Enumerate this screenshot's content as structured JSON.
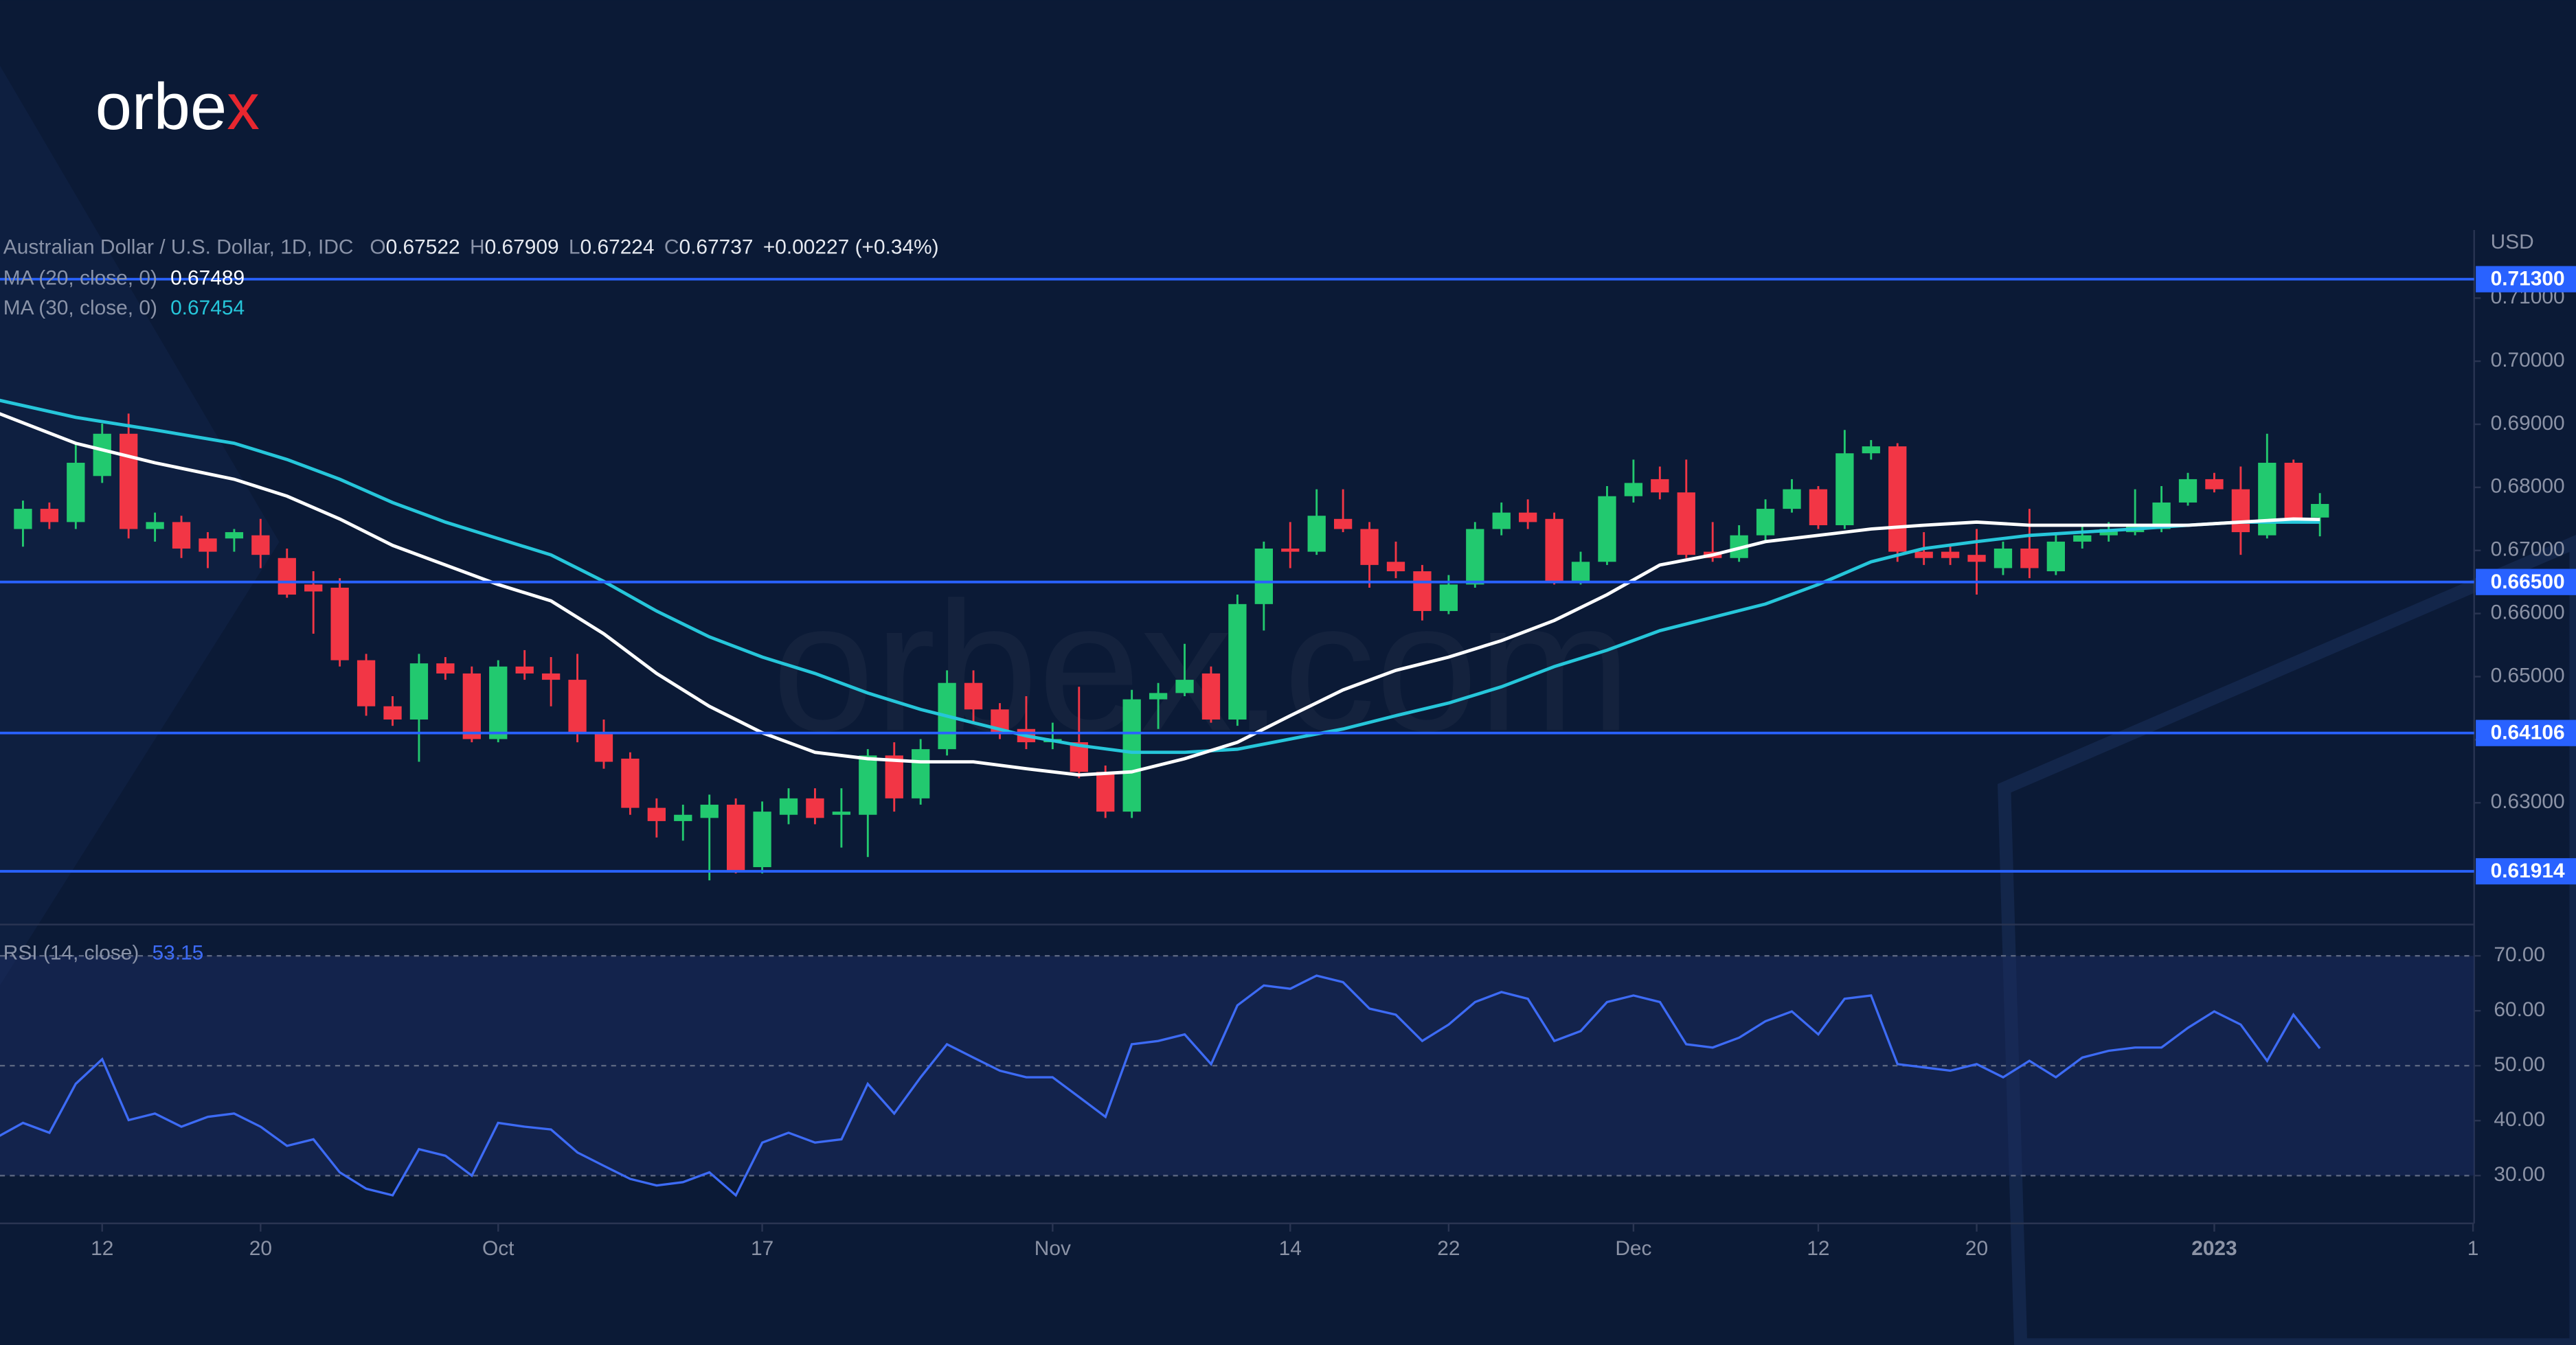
{
  "logo": [
    "orbe",
    "x"
  ],
  "watermark": "orbex.com",
  "chart_data": [
    {
      "type": "candlestick",
      "title": "Australian Dollar / U.S. Dollar, 1D, IDC",
      "ohlc_legend": [
        {
          "label": "O",
          "value": 0.67522
        },
        {
          "label": "H",
          "value": 0.67909
        },
        {
          "label": "L",
          "value": 0.67224
        },
        {
          "label": "C",
          "value": 0.67737
        }
      ],
      "change": "+0.00227 (+0.34%)",
      "y_unit": "USD",
      "up_color": "#22c96f",
      "down_color": "#f23645",
      "ylim": [
        0.6107,
        0.7208
      ],
      "yticks": [
        {
          "value": 0.63,
          "label": "0.63000"
        },
        {
          "value": 0.64,
          "label": "0.64000"
        },
        {
          "value": 0.65,
          "label": "0.65000"
        },
        {
          "value": 0.66,
          "label": "0.66000"
        },
        {
          "value": 0.67,
          "label": "0.67000"
        },
        {
          "value": 0.68,
          "label": "0.68000"
        },
        {
          "value": 0.69,
          "label": "0.69000"
        },
        {
          "value": 0.7,
          "label": "0.70000"
        },
        {
          "value": 0.71,
          "label": "0.71000"
        }
      ],
      "xlim": [
        -0.87,
        92.78
      ],
      "xticks": [
        {
          "value": 3,
          "label": "12"
        },
        {
          "value": 9,
          "label": "20"
        },
        {
          "value": 18,
          "label": "Oct"
        },
        {
          "value": 28,
          "label": "17"
        },
        {
          "value": 39,
          "label": "Nov"
        },
        {
          "value": 48,
          "label": "14"
        },
        {
          "value": 54,
          "label": "22"
        },
        {
          "value": 61,
          "label": "Dec"
        },
        {
          "value": 68,
          "label": "12"
        },
        {
          "value": 74,
          "label": "20"
        },
        {
          "value": 83,
          "label": "2023"
        },
        {
          "value": 92.8,
          "label": "1"
        }
      ],
      "levels": [
        {
          "value": 0.713,
          "label": "0.71300"
        },
        {
          "value": 0.665,
          "label": "0.66500"
        },
        {
          "value": 0.64106,
          "label": "0.64106"
        },
        {
          "value": 0.61914,
          "label": "0.61914"
        }
      ],
      "level_color": "#2962ff",
      "ohlc": [
        [
          0.6734,
          0.6779,
          0.6706,
          0.6766
        ],
        [
          0.6766,
          0.6776,
          0.6734,
          0.6745
        ],
        [
          0.6745,
          0.687,
          0.6734,
          0.6839
        ],
        [
          0.6818,
          0.6901,
          0.6807,
          0.6885
        ],
        [
          0.6885,
          0.6917,
          0.6719,
          0.6734
        ],
        [
          0.6734,
          0.676,
          0.6714,
          0.6745
        ],
        [
          0.6745,
          0.6755,
          0.6688,
          0.6703
        ],
        [
          0.6719,
          0.6729,
          0.6672,
          0.6698
        ],
        [
          0.6719,
          0.6734,
          0.6698,
          0.6729
        ],
        [
          0.6724,
          0.675,
          0.6672,
          0.6693
        ],
        [
          0.6688,
          0.6703,
          0.6625,
          0.663
        ],
        [
          0.6646,
          0.6667,
          0.6568,
          0.6635
        ],
        [
          0.6641,
          0.6656,
          0.6516,
          0.6526
        ],
        [
          0.6526,
          0.6536,
          0.6438,
          0.6453
        ],
        [
          0.6453,
          0.6469,
          0.6422,
          0.6432
        ],
        [
          0.6432,
          0.6536,
          0.6365,
          0.6521
        ],
        [
          0.6521,
          0.6531,
          0.6495,
          0.6505
        ],
        [
          0.6505,
          0.6516,
          0.6396,
          0.6401
        ],
        [
          0.6401,
          0.6526,
          0.6396,
          0.6516
        ],
        [
          0.6516,
          0.6542,
          0.6495,
          0.6505
        ],
        [
          0.6505,
          0.6531,
          0.6453,
          0.6495
        ],
        [
          0.6495,
          0.6536,
          0.6396,
          0.6411
        ],
        [
          0.6411,
          0.6432,
          0.6354,
          0.6365
        ],
        [
          0.637,
          0.638,
          0.6281,
          0.6292
        ],
        [
          0.6292,
          0.6307,
          0.6245,
          0.6271
        ],
        [
          0.6271,
          0.6297,
          0.624,
          0.6281
        ],
        [
          0.6276,
          0.6313,
          0.6177,
          0.6297
        ],
        [
          0.6297,
          0.6307,
          0.6188,
          0.6193
        ],
        [
          0.6198,
          0.6302,
          0.6188,
          0.6286
        ],
        [
          0.6281,
          0.6323,
          0.6266,
          0.6307
        ],
        [
          0.6307,
          0.6323,
          0.6266,
          0.6276
        ],
        [
          0.6281,
          0.6323,
          0.6229,
          0.6286
        ],
        [
          0.6281,
          0.6385,
          0.6214,
          0.6375
        ],
        [
          0.6375,
          0.6396,
          0.6286,
          0.6307
        ],
        [
          0.6307,
          0.6401,
          0.6297,
          0.6385
        ],
        [
          0.6385,
          0.651,
          0.6375,
          0.649
        ],
        [
          0.649,
          0.651,
          0.6427,
          0.6448
        ],
        [
          0.6448,
          0.6458,
          0.6401,
          0.6411
        ],
        [
          0.6417,
          0.6469,
          0.6385,
          0.6396
        ],
        [
          0.6396,
          0.6427,
          0.6385,
          0.6401
        ],
        [
          0.6396,
          0.6484,
          0.6339,
          0.6349
        ],
        [
          0.6349,
          0.6359,
          0.6276,
          0.6286
        ],
        [
          0.6286,
          0.6479,
          0.6276,
          0.6464
        ],
        [
          0.6464,
          0.649,
          0.6417,
          0.6474
        ],
        [
          0.6474,
          0.6552,
          0.6469,
          0.6495
        ],
        [
          0.6505,
          0.6516,
          0.6427,
          0.6432
        ],
        [
          0.6432,
          0.663,
          0.6422,
          0.6615
        ],
        [
          0.6615,
          0.6714,
          0.6573,
          0.6703
        ],
        [
          0.6703,
          0.6745,
          0.6672,
          0.6698
        ],
        [
          0.6698,
          0.6797,
          0.6693,
          0.6755
        ],
        [
          0.675,
          0.6797,
          0.6729,
          0.6734
        ],
        [
          0.6734,
          0.6745,
          0.6641,
          0.6677
        ],
        [
          0.6682,
          0.6714,
          0.6656,
          0.6667
        ],
        [
          0.6667,
          0.6677,
          0.6589,
          0.6604
        ],
        [
          0.6604,
          0.6661,
          0.6599,
          0.6646
        ],
        [
          0.6646,
          0.6745,
          0.6641,
          0.6734
        ],
        [
          0.6734,
          0.6776,
          0.6724,
          0.676
        ],
        [
          0.676,
          0.6781,
          0.6734,
          0.6745
        ],
        [
          0.675,
          0.676,
          0.6646,
          0.6651
        ],
        [
          0.6651,
          0.6698,
          0.6646,
          0.6682
        ],
        [
          0.6682,
          0.6802,
          0.6677,
          0.6786
        ],
        [
          0.6786,
          0.6844,
          0.6776,
          0.6807
        ],
        [
          0.6813,
          0.6833,
          0.6781,
          0.6792
        ],
        [
          0.6792,
          0.6844,
          0.6688,
          0.6693
        ],
        [
          0.6698,
          0.6745,
          0.6682,
          0.6688
        ],
        [
          0.6688,
          0.674,
          0.6682,
          0.6724
        ],
        [
          0.6724,
          0.6781,
          0.6714,
          0.6766
        ],
        [
          0.6766,
          0.6813,
          0.676,
          0.6797
        ],
        [
          0.6797,
          0.6802,
          0.6734,
          0.674
        ],
        [
          0.674,
          0.6891,
          0.6734,
          0.6854
        ],
        [
          0.6854,
          0.6875,
          0.6844,
          0.6865
        ],
        [
          0.6865,
          0.687,
          0.6682,
          0.6698
        ],
        [
          0.6698,
          0.6729,
          0.6677,
          0.6688
        ],
        [
          0.6698,
          0.6708,
          0.6677,
          0.6688
        ],
        [
          0.6693,
          0.6734,
          0.663,
          0.6682
        ],
        [
          0.6672,
          0.6714,
          0.6661,
          0.6703
        ],
        [
          0.6703,
          0.6766,
          0.6656,
          0.6672
        ],
        [
          0.6667,
          0.6729,
          0.6661,
          0.6714
        ],
        [
          0.6714,
          0.674,
          0.6703,
          0.6724
        ],
        [
          0.6724,
          0.6745,
          0.6714,
          0.6734
        ],
        [
          0.6729,
          0.6797,
          0.6724,
          0.674
        ],
        [
          0.6734,
          0.6802,
          0.6729,
          0.6776
        ],
        [
          0.6776,
          0.6823,
          0.6771,
          0.6813
        ],
        [
          0.6813,
          0.6823,
          0.6792,
          0.6797
        ],
        [
          0.6797,
          0.6833,
          0.6693,
          0.6729
        ],
        [
          0.6724,
          0.6885,
          0.6719,
          0.6839
        ],
        [
          0.6839,
          0.6844,
          0.6745,
          0.675
        ],
        [
          0.67522,
          0.67909,
          0.67224,
          0.67737
        ]
      ],
      "series": [
        {
          "name": "MA (20, close, 0)",
          "last": 0.67489,
          "color": "#ffffff",
          "x": [
            -0.9,
            2,
            5,
            8,
            10,
            12,
            14,
            16,
            18,
            20,
            22,
            24,
            26,
            28,
            30,
            32,
            34,
            36,
            38,
            40,
            42,
            44,
            46,
            48,
            50,
            52,
            54,
            56,
            58,
            60,
            62,
            64,
            66,
            68,
            70,
            72,
            74,
            76,
            78,
            80,
            82,
            84,
            86,
            87
          ],
          "values": [
            0.6917,
            0.687,
            0.6839,
            0.6813,
            0.6786,
            0.675,
            0.6708,
            0.6677,
            0.6646,
            0.662,
            0.6568,
            0.6505,
            0.6453,
            0.6411,
            0.638,
            0.637,
            0.6365,
            0.6365,
            0.6354,
            0.6344,
            0.6349,
            0.637,
            0.6396,
            0.6438,
            0.6479,
            0.651,
            0.6531,
            0.6557,
            0.6589,
            0.663,
            0.6677,
            0.6693,
            0.6714,
            0.6724,
            0.6734,
            0.674,
            0.6745,
            0.674,
            0.674,
            0.674,
            0.674,
            0.6745,
            0.675,
            0.6749
          ]
        },
        {
          "name": "MA (30, close, 0)",
          "last": 0.67454,
          "color": "#26c6da",
          "x": [
            -0.9,
            2,
            5,
            8,
            10,
            12,
            14,
            16,
            18,
            20,
            22,
            24,
            26,
            28,
            30,
            32,
            34,
            36,
            38,
            40,
            42,
            44,
            46,
            48,
            50,
            52,
            54,
            56,
            58,
            60,
            62,
            64,
            66,
            68,
            70,
            72,
            74,
            76,
            78,
            80,
            82,
            84,
            86,
            87
          ],
          "values": [
            0.6938,
            0.6911,
            0.6891,
            0.687,
            0.6844,
            0.6813,
            0.6776,
            0.6745,
            0.6719,
            0.6693,
            0.6651,
            0.6604,
            0.6563,
            0.6531,
            0.6505,
            0.6474,
            0.6448,
            0.6427,
            0.6406,
            0.6391,
            0.638,
            0.638,
            0.6385,
            0.6401,
            0.6417,
            0.6438,
            0.6458,
            0.6484,
            0.6516,
            0.6542,
            0.6573,
            0.6594,
            0.6615,
            0.6646,
            0.6682,
            0.6703,
            0.6714,
            0.6724,
            0.6729,
            0.6734,
            0.674,
            0.6745,
            0.6745,
            0.6745
          ]
        }
      ]
    },
    {
      "type": "line",
      "name": "RSI (14, close)",
      "last": 53.15,
      "ylim": [
        21.3,
        75.1
      ],
      "yticks": [
        {
          "value": 30,
          "label": "30.00"
        },
        {
          "value": 40,
          "label": "40.00"
        },
        {
          "value": 50,
          "label": "50.00"
        },
        {
          "value": 60,
          "label": "60.00"
        },
        {
          "value": 70,
          "label": "70.00"
        }
      ],
      "grid_lines": [
        30,
        50,
        70
      ],
      "band": [
        30,
        70
      ],
      "band_color": "#1c2c5e",
      "series": [
        {
          "name": "RSI",
          "color": "#3d6bf5",
          "x": [
            -0.9,
            0,
            1,
            2,
            3,
            4,
            5,
            6,
            7,
            8,
            9,
            10,
            11,
            12,
            13,
            14,
            15,
            16,
            17,
            18,
            19,
            20,
            21,
            22,
            23,
            24,
            25,
            26,
            27,
            28,
            29,
            30,
            31,
            32,
            33,
            34,
            35,
            36,
            37,
            38,
            39,
            40,
            41,
            42,
            43,
            44,
            45,
            46,
            47,
            48,
            49,
            50,
            51,
            52,
            53,
            54,
            55,
            56,
            57,
            58,
            59,
            60,
            61,
            62,
            63,
            64,
            65,
            66,
            67,
            68,
            69,
            70,
            71,
            72,
            73,
            74,
            75,
            76,
            77,
            78,
            79,
            80,
            81,
            82,
            83,
            84,
            85,
            86,
            87
          ],
          "values": [
            37.2,
            39.6,
            37.8,
            46.7,
            51.2,
            40.1,
            41.3,
            38.9,
            40.7,
            41.3,
            38.9,
            35.4,
            36.6,
            30.6,
            27.6,
            26.4,
            34.8,
            33.6,
            30.0,
            39.6,
            38.9,
            38.4,
            34.2,
            31.8,
            29.4,
            28.2,
            28.8,
            30.6,
            26.4,
            36.0,
            37.8,
            36.0,
            36.6,
            46.7,
            41.3,
            47.9,
            53.9,
            51.5,
            49.1,
            47.9,
            47.9,
            44.3,
            40.7,
            53.9,
            54.5,
            55.7,
            50.3,
            61.0,
            64.6,
            64.0,
            66.4,
            65.2,
            60.4,
            59.3,
            54.5,
            57.5,
            61.6,
            63.4,
            62.2,
            54.5,
            56.3,
            61.6,
            62.8,
            61.6,
            53.9,
            53.3,
            55.1,
            58.1,
            59.9,
            55.7,
            62.2,
            62.8,
            50.3,
            49.7,
            49.1,
            50.3,
            47.9,
            50.9,
            47.9,
            51.5,
            52.7,
            53.3,
            53.3,
            56.9,
            59.9,
            57.5,
            50.9,
            59.3,
            53.15
          ]
        }
      ]
    }
  ]
}
